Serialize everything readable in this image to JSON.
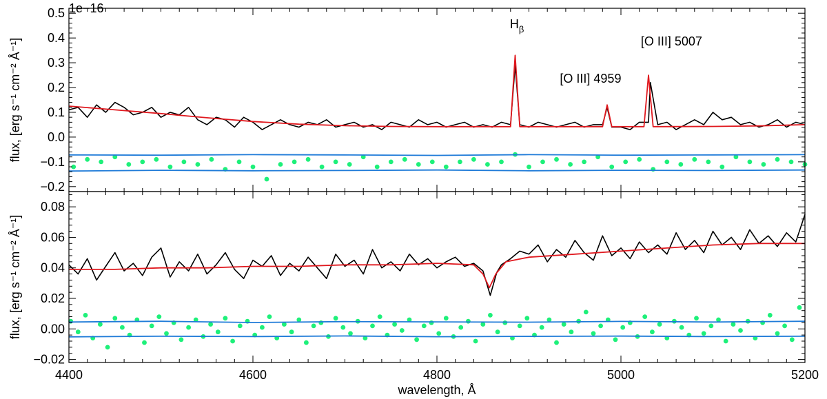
{
  "chart_data": [
    {
      "type": "line",
      "panel": "top",
      "scale_note": "1e−16",
      "ylabel": "flux, [erg s⁻¹ cm⁻² Å⁻¹]",
      "xlabel": "",
      "xlim": [
        4400,
        5200
      ],
      "ylim": [
        -0.22,
        0.52
      ],
      "yticks": [
        -0.2,
        -0.1,
        0.0,
        0.1,
        0.2,
        0.3,
        0.4,
        0.5
      ],
      "ytick_labels": [
        "−0.2",
        "−0.1",
        "0.0",
        "0.1",
        "0.2",
        "0.3",
        "0.4",
        "0.5"
      ],
      "xticks": [
        4400,
        4600,
        4800,
        5000,
        5200
      ],
      "annotations": [
        {
          "text": "H",
          "sub": "β",
          "x": 4887,
          "y": 0.44
        },
        {
          "text": "[O III] 5007",
          "x": 5055,
          "y": 0.37
        },
        {
          "text": "[O III] 4959",
          "x": 4967,
          "y": 0.22
        }
      ],
      "series": [
        {
          "name": "observed spectrum",
          "color": "#000000",
          "x": [
            4400,
            4410,
            4420,
            4430,
            4440,
            4450,
            4460,
            4470,
            4480,
            4490,
            4500,
            4510,
            4520,
            4530,
            4540,
            4550,
            4560,
            4570,
            4580,
            4590,
            4600,
            4610,
            4620,
            4630,
            4640,
            4650,
            4660,
            4670,
            4680,
            4690,
            4700,
            4710,
            4720,
            4730,
            4740,
            4750,
            4760,
            4770,
            4780,
            4790,
            4800,
            4810,
            4820,
            4830,
            4840,
            4850,
            4860,
            4870,
            4880,
            4885,
            4890,
            4900,
            4910,
            4920,
            4930,
            4940,
            4950,
            4960,
            4970,
            4980,
            4985,
            4990,
            5000,
            5010,
            5020,
            5030,
            5032,
            5040,
            5050,
            5060,
            5070,
            5080,
            5090,
            5100,
            5110,
            5120,
            5130,
            5140,
            5150,
            5160,
            5170,
            5180,
            5190,
            5200
          ],
          "y": [
            0.11,
            0.12,
            0.08,
            0.13,
            0.1,
            0.14,
            0.12,
            0.09,
            0.1,
            0.12,
            0.08,
            0.1,
            0.09,
            0.12,
            0.07,
            0.05,
            0.08,
            0.07,
            0.04,
            0.08,
            0.06,
            0.03,
            0.05,
            0.07,
            0.05,
            0.04,
            0.06,
            0.05,
            0.07,
            0.04,
            0.05,
            0.06,
            0.04,
            0.05,
            0.03,
            0.06,
            0.05,
            0.04,
            0.07,
            0.05,
            0.06,
            0.04,
            0.05,
            0.06,
            0.04,
            0.05,
            0.04,
            0.06,
            0.05,
            0.29,
            0.05,
            0.04,
            0.06,
            0.05,
            0.04,
            0.05,
            0.06,
            0.04,
            0.05,
            0.05,
            0.12,
            0.04,
            0.04,
            0.03,
            0.06,
            0.06,
            0.22,
            0.05,
            0.06,
            0.03,
            0.05,
            0.07,
            0.05,
            0.1,
            0.07,
            0.08,
            0.05,
            0.06,
            0.04,
            0.05,
            0.07,
            0.04,
            0.06,
            0.05
          ]
        },
        {
          "name": "model fit",
          "color": "#e0191f",
          "x": [
            4400,
            4450,
            4500,
            4550,
            4600,
            4650,
            4700,
            4750,
            4800,
            4850,
            4880,
            4885,
            4890,
            4950,
            4980,
            4985,
            4990,
            5025,
            5030,
            5035,
            5100,
            5150,
            5200
          ],
          "y": [
            0.125,
            0.11,
            0.095,
            0.078,
            0.063,
            0.052,
            0.046,
            0.043,
            0.042,
            0.042,
            0.042,
            0.33,
            0.042,
            0.042,
            0.042,
            0.13,
            0.042,
            0.042,
            0.25,
            0.042,
            0.043,
            0.045,
            0.05
          ]
        },
        {
          "name": "residuals",
          "color": "#1ef07a",
          "x": [
            4405,
            4420,
            4435,
            4450,
            4465,
            4480,
            4495,
            4510,
            4525,
            4540,
            4555,
            4570,
            4585,
            4600,
            4615,
            4630,
            4645,
            4660,
            4675,
            4690,
            4705,
            4720,
            4735,
            4750,
            4765,
            4780,
            4795,
            4810,
            4825,
            4840,
            4855,
            4870,
            4885,
            4900,
            4915,
            4930,
            4945,
            4960,
            4975,
            4990,
            5005,
            5020,
            5035,
            5050,
            5065,
            5080,
            5095,
            5110,
            5125,
            5140,
            5155,
            5170,
            5185,
            5200
          ],
          "y": [
            -0.12,
            -0.09,
            -0.1,
            -0.08,
            -0.11,
            -0.1,
            -0.09,
            -0.12,
            -0.1,
            -0.11,
            -0.09,
            -0.13,
            -0.1,
            -0.12,
            -0.17,
            -0.11,
            -0.1,
            -0.09,
            -0.12,
            -0.1,
            -0.11,
            -0.08,
            -0.12,
            -0.1,
            -0.09,
            -0.11,
            -0.1,
            -0.12,
            -0.1,
            -0.09,
            -0.11,
            -0.1,
            -0.07,
            -0.12,
            -0.1,
            -0.09,
            -0.11,
            -0.1,
            -0.08,
            -0.12,
            -0.1,
            -0.09,
            -0.13,
            -0.1,
            -0.11,
            -0.09,
            -0.1,
            -0.12,
            -0.08,
            -0.1,
            -0.11,
            -0.09,
            -0.1,
            -0.11
          ]
        },
        {
          "name": "upper error band",
          "color": "#1f7bd8",
          "x": [
            4400,
            4500,
            4600,
            4700,
            4800,
            4900,
            5000,
            5100,
            5200
          ],
          "y": [
            -0.072,
            -0.073,
            -0.071,
            -0.072,
            -0.074,
            -0.071,
            -0.073,
            -0.072,
            -0.071
          ]
        },
        {
          "name": "lower error band",
          "color": "#1f7bd8",
          "x": [
            4400,
            4500,
            4600,
            4700,
            4800,
            4900,
            5000,
            5100,
            5200
          ],
          "y": [
            -0.137,
            -0.134,
            -0.136,
            -0.135,
            -0.133,
            -0.136,
            -0.134,
            -0.135,
            -0.133
          ]
        }
      ]
    },
    {
      "type": "line",
      "panel": "bottom",
      "ylabel": "flux, [erg s⁻¹ cm⁻² Å⁻¹]",
      "xlabel": "wavelength, Å",
      "xlim": [
        4400,
        5200
      ],
      "ylim": [
        -0.022,
        0.09
      ],
      "yticks": [
        -0.02,
        0.0,
        0.02,
        0.04,
        0.06,
        0.08
      ],
      "ytick_labels": [
        "−0.02",
        "0.00",
        "0.02",
        "0.04",
        "0.06",
        "0.08"
      ],
      "xticks": [
        4400,
        4600,
        4800,
        5000,
        5200
      ],
      "xtick_labels": [
        "4400",
        "4600",
        "4800",
        "5000",
        "5200"
      ],
      "series": [
        {
          "name": "observed spectrum",
          "color": "#000000",
          "x": [
            4400,
            4410,
            4420,
            4430,
            4440,
            4450,
            4460,
            4470,
            4480,
            4490,
            4500,
            4510,
            4520,
            4530,
            4540,
            4550,
            4560,
            4570,
            4580,
            4590,
            4600,
            4610,
            4620,
            4630,
            4640,
            4650,
            4660,
            4670,
            4680,
            4690,
            4700,
            4710,
            4720,
            4730,
            4740,
            4750,
            4760,
            4770,
            4780,
            4790,
            4800,
            4810,
            4820,
            4830,
            4840,
            4850,
            4858,
            4865,
            4870,
            4880,
            4890,
            4900,
            4910,
            4920,
            4930,
            4940,
            4950,
            4960,
            4970,
            4980,
            4990,
            5000,
            5010,
            5020,
            5030,
            5040,
            5050,
            5060,
            5070,
            5080,
            5090,
            5100,
            5110,
            5120,
            5130,
            5140,
            5150,
            5160,
            5170,
            5180,
            5190,
            5200
          ],
          "y": [
            0.042,
            0.036,
            0.046,
            0.032,
            0.041,
            0.05,
            0.038,
            0.043,
            0.035,
            0.047,
            0.053,
            0.034,
            0.044,
            0.038,
            0.049,
            0.036,
            0.042,
            0.05,
            0.039,
            0.033,
            0.045,
            0.041,
            0.048,
            0.035,
            0.043,
            0.038,
            0.047,
            0.04,
            0.033,
            0.049,
            0.041,
            0.045,
            0.036,
            0.052,
            0.04,
            0.044,
            0.038,
            0.049,
            0.042,
            0.046,
            0.04,
            0.044,
            0.047,
            0.041,
            0.043,
            0.038,
            0.022,
            0.037,
            0.042,
            0.046,
            0.051,
            0.049,
            0.055,
            0.044,
            0.052,
            0.047,
            0.058,
            0.05,
            0.045,
            0.061,
            0.048,
            0.053,
            0.046,
            0.057,
            0.05,
            0.055,
            0.049,
            0.063,
            0.052,
            0.058,
            0.05,
            0.064,
            0.055,
            0.06,
            0.052,
            0.065,
            0.056,
            0.061,
            0.054,
            0.063,
            0.057,
            0.075
          ]
        },
        {
          "name": "model fit",
          "color": "#e0191f",
          "x": [
            4400,
            4450,
            4500,
            4550,
            4600,
            4650,
            4700,
            4750,
            4800,
            4840,
            4850,
            4857,
            4864,
            4875,
            4900,
            4950,
            5000,
            5050,
            5100,
            5150,
            5200
          ],
          "y": [
            0.039,
            0.039,
            0.04,
            0.04,
            0.041,
            0.041,
            0.042,
            0.042,
            0.043,
            0.042,
            0.036,
            0.027,
            0.036,
            0.044,
            0.047,
            0.049,
            0.051,
            0.053,
            0.055,
            0.056,
            0.056
          ]
        },
        {
          "name": "residuals",
          "color": "#1ef07a",
          "x": [
            4402,
            4410,
            4418,
            4426,
            4434,
            4442,
            4450,
            4458,
            4466,
            4474,
            4482,
            4490,
            4498,
            4506,
            4514,
            4522,
            4530,
            4538,
            4546,
            4554,
            4562,
            4570,
            4578,
            4586,
            4594,
            4602,
            4610,
            4618,
            4626,
            4634,
            4642,
            4650,
            4658,
            4666,
            4674,
            4682,
            4690,
            4698,
            4706,
            4714,
            4722,
            4730,
            4738,
            4746,
            4754,
            4762,
            4770,
            4778,
            4786,
            4794,
            4802,
            4810,
            4818,
            4826,
            4834,
            4842,
            4850,
            4858,
            4866,
            4874,
            4882,
            4890,
            4898,
            4906,
            4914,
            4922,
            4930,
            4938,
            4946,
            4954,
            4962,
            4970,
            4978,
            4986,
            4994,
            5002,
            5010,
            5018,
            5026,
            5034,
            5042,
            5050,
            5058,
            5066,
            5074,
            5082,
            5090,
            5098,
            5106,
            5114,
            5122,
            5130,
            5138,
            5146,
            5154,
            5162,
            5170,
            5178,
            5186,
            5194
          ],
          "y": [
            0.005,
            -0.002,
            0.009,
            -0.006,
            0.003,
            -0.012,
            0.007,
            0.001,
            -0.004,
            0.006,
            -0.009,
            0.002,
            0.008,
            -0.003,
            0.004,
            -0.007,
            0.001,
            0.006,
            -0.005,
            0.003,
            -0.002,
            0.007,
            -0.008,
            0.002,
            0.005,
            -0.004,
            0.001,
            0.008,
            -0.006,
            0.003,
            -0.002,
            0.006,
            -0.009,
            0.002,
            0.004,
            -0.005,
            0.007,
            0.001,
            -0.003,
            0.005,
            -0.006,
            0.002,
            0.008,
            -0.004,
            0.003,
            -0.001,
            0.006,
            -0.007,
            0.002,
            0.004,
            -0.003,
            0.007,
            -0.005,
            0.001,
            0.005,
            -0.008,
            0.003,
            0.009,
            -0.002,
            0.004,
            -0.006,
            0.002,
            0.007,
            -0.004,
            0.001,
            0.006,
            -0.009,
            0.003,
            -0.002,
            0.005,
            0.011,
            -0.003,
            0.002,
            0.006,
            -0.007,
            0.001,
            0.004,
            -0.005,
            0.008,
            -0.002,
            0.003,
            -0.006,
            0.005,
            0.001,
            -0.004,
            0.007,
            -0.003,
            0.002,
            0.006,
            -0.008,
            0.003,
            -0.001,
            0.005,
            -0.006,
            0.004,
            0.009,
            -0.003,
            0.002,
            -0.007,
            0.014
          ]
        },
        {
          "name": "upper error band",
          "color": "#1f7bd8",
          "x": [
            4400,
            4500,
            4600,
            4700,
            4800,
            4900,
            5000,
            5100,
            5200
          ],
          "y": [
            0.0045,
            0.005,
            0.0042,
            0.0048,
            0.0046,
            0.0044,
            0.0049,
            0.0045,
            0.005
          ]
        },
        {
          "name": "lower error band",
          "color": "#1f7bd8",
          "x": [
            4400,
            4500,
            4600,
            4700,
            4800,
            4900,
            5000,
            5100,
            5200
          ],
          "y": [
            -0.0052,
            -0.0048,
            -0.005,
            -0.0046,
            -0.0051,
            -0.0049,
            -0.0047,
            -0.005,
            -0.0048
          ]
        }
      ]
    }
  ]
}
